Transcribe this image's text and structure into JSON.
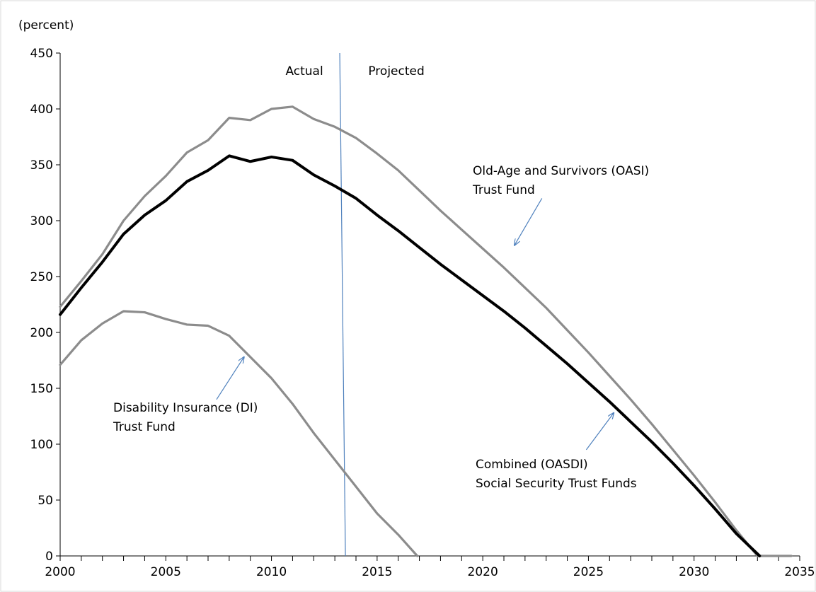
{
  "chart_data": {
    "type": "line",
    "y_unit_label": "(percent)",
    "xlim": [
      2000,
      2035
    ],
    "ylim": [
      0,
      450
    ],
    "x_ticks": [
      2000,
      2005,
      2010,
      2015,
      2020,
      2025,
      2030,
      2035
    ],
    "y_ticks": [
      0,
      50,
      100,
      150,
      200,
      250,
      300,
      350,
      400,
      450
    ],
    "grid": false,
    "legend": "none",
    "divider": {
      "x": 2013.5,
      "left_label": "Actual",
      "right_label": "Projected"
    },
    "series": [
      {
        "key": "oasi",
        "color": "#8c8c8c",
        "points": [
          [
            2000,
            223
          ],
          [
            2001,
            246
          ],
          [
            2002,
            270
          ],
          [
            2003,
            300
          ],
          [
            2004,
            322
          ],
          [
            2005,
            340
          ],
          [
            2006,
            361
          ],
          [
            2007,
            372
          ],
          [
            2008,
            392
          ],
          [
            2009,
            390
          ],
          [
            2010,
            400
          ],
          [
            2011,
            402
          ],
          [
            2012,
            391
          ],
          [
            2013,
            384
          ],
          [
            2014,
            374
          ],
          [
            2015,
            360
          ],
          [
            2016,
            345
          ],
          [
            2017,
            327
          ],
          [
            2018,
            309
          ],
          [
            2019,
            292
          ],
          [
            2020,
            275
          ],
          [
            2021,
            258
          ],
          [
            2022,
            240
          ],
          [
            2023,
            222
          ],
          [
            2024,
            202
          ],
          [
            2025,
            182
          ],
          [
            2026,
            161
          ],
          [
            2027,
            140
          ],
          [
            2028,
            118
          ],
          [
            2029,
            95
          ],
          [
            2030,
            72
          ],
          [
            2031,
            48
          ],
          [
            2032,
            23
          ],
          [
            2033,
            -3
          ],
          [
            2034.6,
            0
          ]
        ]
      },
      {
        "key": "oasdi",
        "color": "#000000",
        "points": [
          [
            2000,
            216
          ],
          [
            2001,
            240
          ],
          [
            2002,
            263
          ],
          [
            2003,
            288
          ],
          [
            2004,
            305
          ],
          [
            2005,
            318
          ],
          [
            2006,
            335
          ],
          [
            2007,
            345
          ],
          [
            2008,
            358
          ],
          [
            2009,
            353
          ],
          [
            2010,
            357
          ],
          [
            2011,
            354
          ],
          [
            2012,
            341
          ],
          [
            2013,
            331
          ],
          [
            2014,
            320
          ],
          [
            2015,
            305
          ],
          [
            2016,
            291
          ],
          [
            2017,
            276
          ],
          [
            2018,
            261
          ],
          [
            2019,
            247
          ],
          [
            2020,
            233
          ],
          [
            2021,
            219
          ],
          [
            2022,
            204
          ],
          [
            2023,
            188
          ],
          [
            2024,
            172
          ],
          [
            2025,
            155
          ],
          [
            2026,
            138
          ],
          [
            2027,
            120
          ],
          [
            2028,
            102
          ],
          [
            2029,
            83
          ],
          [
            2030,
            63
          ],
          [
            2031,
            42
          ],
          [
            2032,
            20
          ],
          [
            2033.1,
            0
          ]
        ]
      },
      {
        "key": "di",
        "color": "#8c8c8c",
        "points": [
          [
            2000,
            171
          ],
          [
            2001,
            193
          ],
          [
            2002,
            208
          ],
          [
            2003,
            219
          ],
          [
            2004,
            218
          ],
          [
            2005,
            212
          ],
          [
            2006,
            207
          ],
          [
            2007,
            206
          ],
          [
            2008,
            197
          ],
          [
            2009,
            178
          ],
          [
            2010,
            159
          ],
          [
            2011,
            136
          ],
          [
            2012,
            110
          ],
          [
            2013,
            86
          ],
          [
            2014,
            62
          ],
          [
            2015,
            38
          ],
          [
            2016,
            19
          ],
          [
            2016.9,
            0
          ]
        ]
      }
    ],
    "annotations": [
      {
        "key": "oasi",
        "lines": [
          "Old-Age and Survivors (OASI)",
          "Trust Fund"
        ],
        "arrow_to": [
          2021.5,
          278
        ],
        "arrow_from": [
          2022.8,
          320
        ]
      },
      {
        "key": "oasdi",
        "lines": [
          "Combined (OASDI)",
          "Social Security Trust Funds"
        ],
        "arrow_to": [
          2026.2,
          128
        ],
        "arrow_from": [
          2024.9,
          95
        ]
      },
      {
        "key": "di",
        "lines": [
          "Disability Insurance (DI)",
          "Trust Fund"
        ],
        "arrow_to": [
          2008.7,
          178
        ],
        "arrow_from": [
          2007.4,
          140
        ]
      }
    ]
  }
}
